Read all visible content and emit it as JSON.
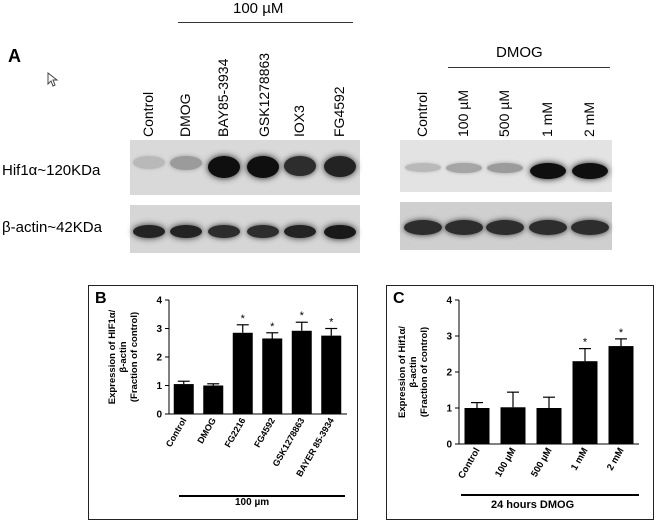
{
  "panel_a": {
    "letter": "A",
    "left_treatment_header": "100 µM",
    "right_treatment_header": "DMOG",
    "left_lanes": [
      "Control",
      "DMOG",
      "BAY85-3934",
      "GSK1278863",
      "IOX3",
      "FG4592"
    ],
    "right_lanes": [
      "Control",
      "100 µM",
      "500 µM",
      "1 mM",
      "2 mM"
    ],
    "row_labels": [
      "Hif1α~120KDa",
      "β-actin~42KDa"
    ],
    "hif_left_intensity": [
      0.15,
      0.3,
      1.0,
      1.0,
      0.85,
      0.9
    ],
    "actin_left_intensity": [
      0.9,
      0.9,
      0.85,
      0.85,
      0.9,
      0.95
    ],
    "hif_right_intensity": [
      0.15,
      0.25,
      0.3,
      1.0,
      1.0
    ],
    "actin_right_intensity": [
      0.85,
      0.85,
      0.85,
      0.85,
      0.85
    ]
  },
  "panel_b": {
    "letter": "B",
    "group_label": "100 µm"
  },
  "panel_c": {
    "letter": "C",
    "group_label": "24 hours DMOG"
  },
  "chart_data": [
    {
      "type": "bar",
      "categories": [
        "Control",
        "DMOG",
        "FG2216",
        "FG4592",
        "GSK1278863",
        "BAYER 85-3934"
      ],
      "values": [
        1.05,
        1.0,
        2.85,
        2.65,
        2.92,
        2.75
      ],
      "errors": [
        0.1,
        0.06,
        0.28,
        0.2,
        0.3,
        0.25
      ],
      "significant": [
        false,
        false,
        true,
        true,
        true,
        true
      ],
      "ylabel": "Expression of HIF1α/\nβ-actin\n(Fraction of control)",
      "ylim": [
        0,
        4
      ],
      "yticks": [
        0,
        1,
        2,
        3,
        4
      ],
      "color": "#000000"
    },
    {
      "type": "bar",
      "categories": [
        "Control",
        "100 µM",
        "500 µM",
        "1 mM",
        "2 mM"
      ],
      "values": [
        1.0,
        1.02,
        1.0,
        2.3,
        2.72
      ],
      "errors": [
        0.15,
        0.42,
        0.3,
        0.35,
        0.2
      ],
      "significant": [
        false,
        false,
        false,
        true,
        true
      ],
      "ylabel": "Expression of Hif1α/\nβ-actin\n(Fraction of control)",
      "ylim": [
        0,
        4
      ],
      "yticks": [
        0,
        1,
        2,
        3,
        4
      ],
      "color": "#000000"
    }
  ],
  "sig_marker": "*"
}
